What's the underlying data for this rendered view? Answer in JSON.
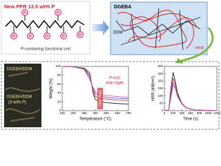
{
  "top_left": {
    "title": "New PFR 13.5 wt% P",
    "atom_label": "P",
    "caption": "P-containing functional unit"
  },
  "top_right": {
    "labels": [
      "DGEBA",
      "DDM",
      "PFR"
    ]
  },
  "image_panel": {
    "labels": [
      "DGEBA/DDM",
      "DGEBA/DDM",
      "(3 wt% P)"
    ]
  },
  "tga_chart": {
    "type": "line",
    "xlabel": "Temperature (°C)",
    "ylabel": "Weight (%)",
    "annotation": [
      "P-rich",
      "char layer"
    ],
    "char_label": "Char Yield",
    "x": [
      100,
      200,
      300,
      350,
      380,
      400,
      450,
      500,
      600,
      700
    ],
    "series": [
      {
        "color": "#222222",
        "values": [
          100,
          99,
          96,
          85,
          40,
          25,
          20,
          18,
          16,
          15
        ]
      },
      {
        "color": "#d0303a",
        "values": [
          100,
          99,
          95,
          80,
          45,
          32,
          28,
          26,
          24,
          23
        ]
      },
      {
        "color": "#4a5fc0",
        "values": [
          100,
          99,
          94,
          75,
          50,
          38,
          33,
          30,
          28,
          27
        ]
      },
      {
        "color": "#d05aa8",
        "values": [
          100,
          99,
          93,
          70,
          52,
          42,
          37,
          34,
          32,
          30
        ]
      }
    ],
    "xlim": [
      100,
      700
    ],
    "ylim": [
      0,
      100
    ],
    "xticks": [
      100,
      200,
      300,
      400,
      500,
      600,
      700
    ],
    "yticks": [
      0,
      20,
      40,
      60,
      80,
      100
    ]
  },
  "hrr_chart": {
    "type": "line",
    "xlabel": "Time (s)",
    "ylabel": "HRR (kW/m²)",
    "x": [
      0,
      100,
      150,
      200,
      250,
      300,
      400,
      500,
      700,
      1000,
      1200
    ],
    "series": [
      {
        "color": "#222222",
        "values": [
          0,
          5,
          150,
          260,
          200,
          120,
          50,
          20,
          5,
          2,
          0
        ]
      },
      {
        "color": "#d0303a",
        "values": [
          0,
          5,
          120,
          220,
          180,
          110,
          50,
          20,
          5,
          2,
          0
        ]
      },
      {
        "color": "#4a5fc0",
        "values": [
          0,
          5,
          100,
          190,
          160,
          100,
          45,
          18,
          5,
          2,
          0
        ]
      },
      {
        "color": "#d05aa8",
        "values": [
          0,
          5,
          90,
          170,
          150,
          95,
          45,
          18,
          5,
          2,
          0
        ]
      }
    ],
    "xlim": [
      0,
      1200
    ],
    "ylim": [
      0,
      300
    ],
    "xticks": [
      0,
      200,
      400,
      600,
      800,
      1000,
      1200
    ],
    "yticks": [
      0,
      50,
      100,
      150,
      200,
      250,
      300
    ]
  }
}
